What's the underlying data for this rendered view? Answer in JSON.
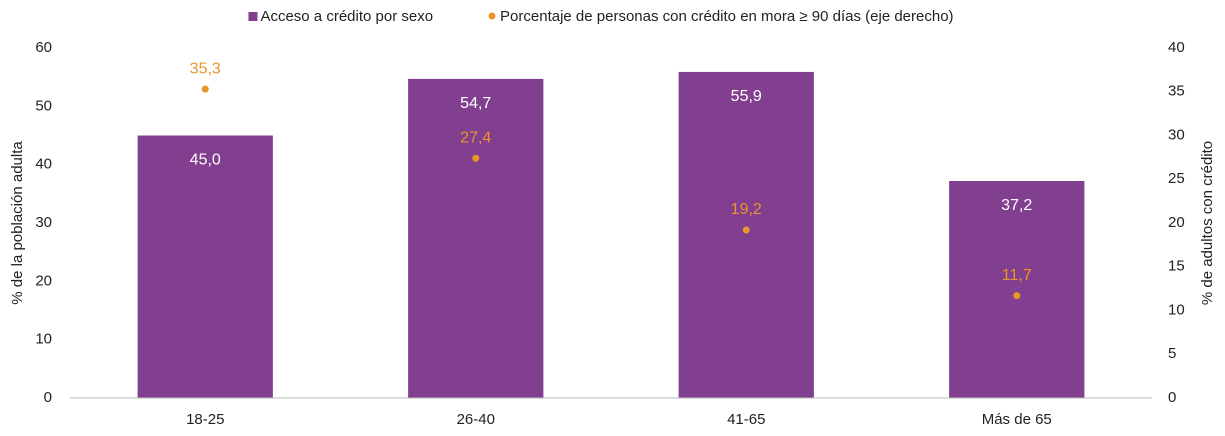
{
  "chart_data": {
    "type": "bar",
    "categories": [
      "18-25",
      "26-40",
      "41-65",
      "Más de 65"
    ],
    "series": [
      {
        "name": "Acceso a crédito por sexo",
        "type": "bar",
        "color": "#833f8f",
        "values": [
          45.0,
          54.7,
          55.9,
          37.2
        ],
        "value_labels": [
          "45,0",
          "54,7",
          "55,9",
          "37,2"
        ]
      },
      {
        "name": "Porcentaje de personas con crédito en mora ≥ 90 días (eje derecho)",
        "type": "scatter",
        "axis": "y2",
        "color": "#e8952a",
        "values": [
          35.3,
          27.4,
          19.2,
          11.7
        ],
        "value_labels": [
          "35,3",
          "27,4",
          "19,2",
          "11,7"
        ]
      }
    ],
    "ylabel": "% de la población adulta",
    "y2label": "% de adultos con crédito",
    "ylim": [
      0,
      60
    ],
    "yticks": [
      0,
      10,
      20,
      30,
      40,
      50,
      60
    ],
    "y2lim": [
      0,
      40
    ],
    "y2ticks": [
      0,
      5,
      10,
      15,
      20,
      25,
      30,
      35,
      40
    ],
    "legend": "top"
  }
}
